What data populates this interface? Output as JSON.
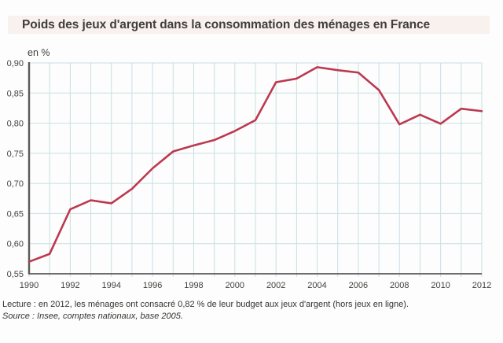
{
  "header": {
    "title": "Poids des jeux d'argent dans la consommation des ménages en France"
  },
  "chart_data": {
    "type": "line",
    "title": "Poids des jeux d'argent dans la consommation des ménages en France",
    "unit_label": "en %",
    "xlabel": "",
    "ylabel": "en %",
    "x": [
      1990,
      1991,
      1992,
      1993,
      1994,
      1995,
      1996,
      1997,
      1998,
      1999,
      2000,
      2001,
      2002,
      2003,
      2004,
      2005,
      2006,
      2007,
      2008,
      2009,
      2010,
      2011,
      2012
    ],
    "series": [
      {
        "name": "Poids des jeux d'argent dans la consommation des ménages",
        "values": [
          0.57,
          0.583,
          0.657,
          0.672,
          0.667,
          0.691,
          0.725,
          0.753,
          0.763,
          0.772,
          0.787,
          0.805,
          0.868,
          0.874,
          0.893,
          0.888,
          0.884,
          0.855,
          0.798,
          0.814,
          0.799,
          0.824,
          0.82
        ]
      }
    ],
    "xlim": [
      1990,
      2012
    ],
    "ylim": [
      0.55,
      0.9
    ],
    "y_step": 0.05,
    "x_tick_step_years": 2,
    "x_tick_labels": [
      "1990",
      "1992",
      "1994",
      "1996",
      "1998",
      "2000",
      "2002",
      "2004",
      "2006",
      "2008",
      "2010",
      "2012"
    ],
    "y_tick_labels": [
      "0,55",
      "0,60",
      "0,65",
      "0,70",
      "0,75",
      "0,80",
      "0,85",
      "0,90"
    ],
    "grid": true,
    "legend": "none",
    "colors": {
      "line": "#bc3950",
      "grid": "#c8dfe2",
      "axis": "#5a5a5c",
      "title_bg": "#f8f1ed",
      "text": "#424240"
    }
  },
  "footer": {
    "lecture": "Lecture : en 2012, les ménages ont consacré 0,82 % de leur budget aux jeux d'argent (hors jeux en ligne).",
    "source": "Source : Insee, comptes nationaux, base 2005."
  }
}
